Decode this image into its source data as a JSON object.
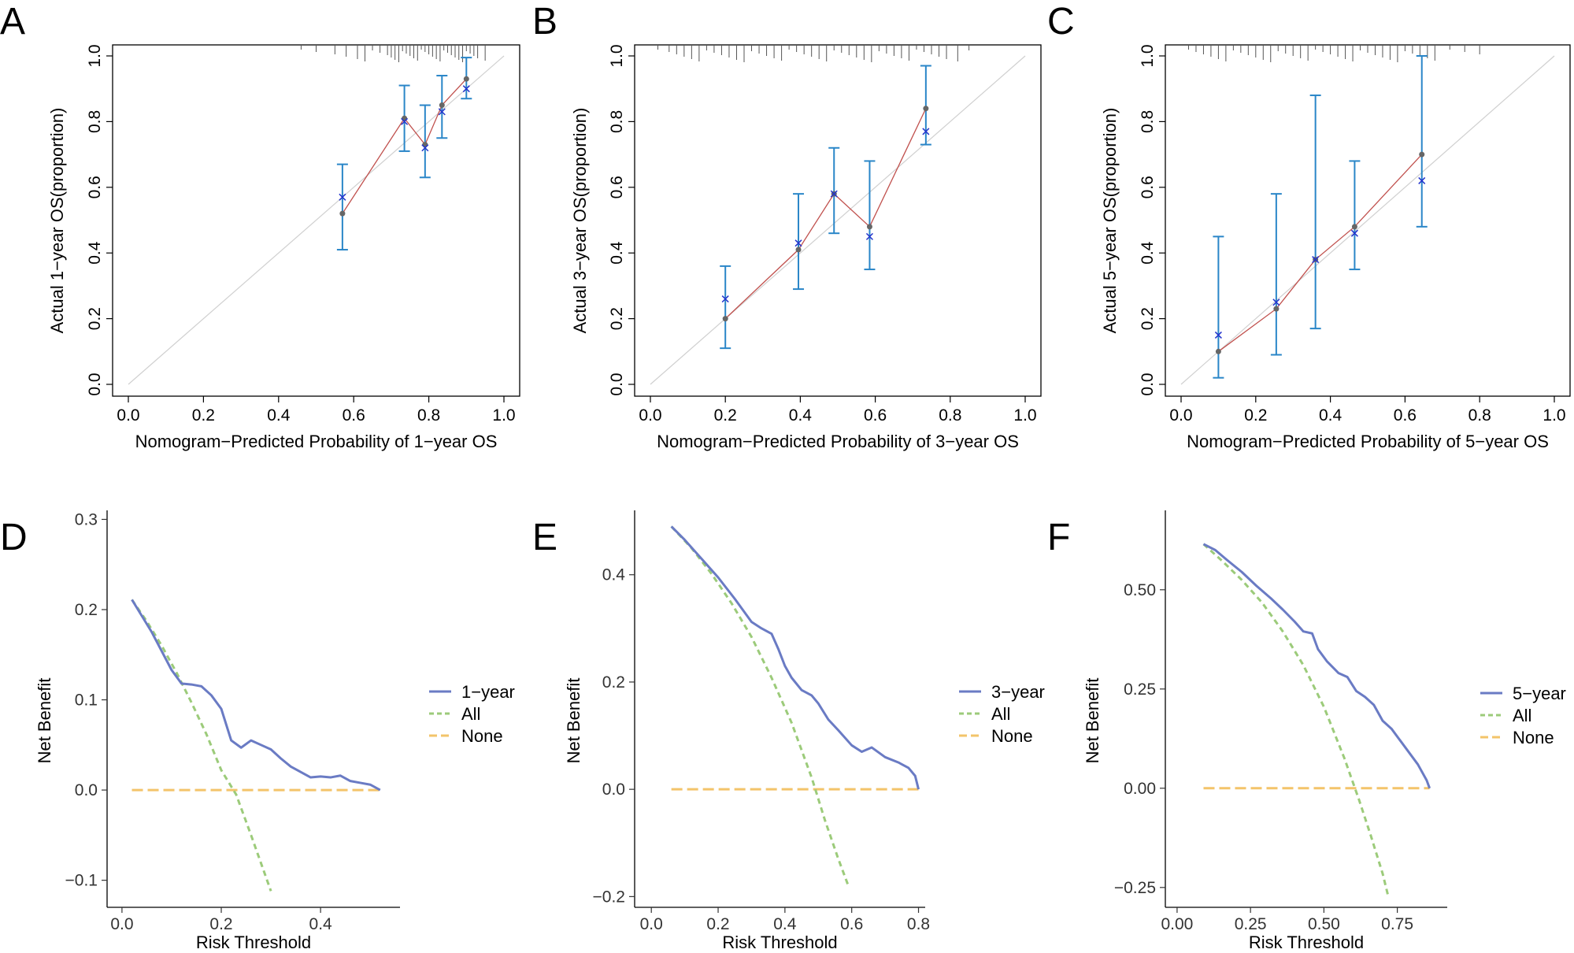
{
  "panels": {
    "A": "A",
    "B": "B",
    "C": "C",
    "D": "D",
    "E": "E",
    "F": "F"
  },
  "colors": {
    "errorbar": "#2a86c8",
    "observed_line": "#c0504d",
    "observed_point": "#666666",
    "corrected_x": "#2233cc",
    "ideal_line": "#d0d0d0",
    "rug": "#555555",
    "model_curve": "#6a7bc4",
    "all_curve": "#9ccb7a",
    "none_curve": "#f3c46a"
  },
  "chart_data": [
    {
      "id": "A",
      "type": "calibration",
      "xlabel": "Nomogram−Predicted Probability of 1−year OS",
      "ylabel": "Actual 1−year OS(proportion)",
      "xlim": [
        0,
        1
      ],
      "ylim": [
        0,
        1
      ],
      "xticks": [
        "0.0",
        "0.2",
        "0.4",
        "0.6",
        "0.8",
        "1.0"
      ],
      "yticks": [
        "0.0",
        "0.2",
        "0.4",
        "0.6",
        "0.8",
        "1.0"
      ],
      "points": [
        {
          "x": 0.57,
          "observed": 0.52,
          "corrected": 0.57,
          "lo": 0.41,
          "hi": 0.67
        },
        {
          "x": 0.735,
          "observed": 0.81,
          "corrected": 0.8,
          "lo": 0.71,
          "hi": 0.91
        },
        {
          "x": 0.79,
          "observed": 0.73,
          "corrected": 0.72,
          "lo": 0.63,
          "hi": 0.85
        },
        {
          "x": 0.835,
          "observed": 0.85,
          "corrected": 0.83,
          "lo": 0.75,
          "hi": 0.94
        },
        {
          "x": 0.9,
          "observed": 0.93,
          "corrected": 0.9,
          "lo": 0.87,
          "hi": 0.995
        }
      ],
      "rug": [
        0.46,
        0.5,
        0.55,
        0.58,
        0.61,
        0.63,
        0.65,
        0.67,
        0.69,
        0.7,
        0.71,
        0.72,
        0.73,
        0.74,
        0.75,
        0.76,
        0.77,
        0.78,
        0.79,
        0.8,
        0.81,
        0.82,
        0.83,
        0.84,
        0.85,
        0.86,
        0.87,
        0.88,
        0.89,
        0.9,
        0.91,
        0.92,
        0.93,
        0.95
      ]
    },
    {
      "id": "B",
      "type": "calibration",
      "xlabel": "Nomogram−Predicted Probability of 3−year OS",
      "ylabel": "Actual 3−year OS(proportion)",
      "xlim": [
        0,
        1
      ],
      "ylim": [
        0,
        1
      ],
      "xticks": [
        "0.0",
        "0.2",
        "0.4",
        "0.6",
        "0.8",
        "1.0"
      ],
      "yticks": [
        "0.0",
        "0.2",
        "0.4",
        "0.6",
        "0.8",
        "1.0"
      ],
      "points": [
        {
          "x": 0.2,
          "observed": 0.2,
          "corrected": 0.26,
          "lo": 0.11,
          "hi": 0.36
        },
        {
          "x": 0.395,
          "observed": 0.41,
          "corrected": 0.43,
          "lo": 0.29,
          "hi": 0.58
        },
        {
          "x": 0.49,
          "observed": 0.58,
          "corrected": 0.58,
          "lo": 0.46,
          "hi": 0.72
        },
        {
          "x": 0.585,
          "observed": 0.48,
          "corrected": 0.45,
          "lo": 0.35,
          "hi": 0.68
        },
        {
          "x": 0.735,
          "observed": 0.84,
          "corrected": 0.77,
          "lo": 0.73,
          "hi": 0.97
        }
      ],
      "rug": [
        0.02,
        0.05,
        0.07,
        0.09,
        0.11,
        0.13,
        0.15,
        0.17,
        0.19,
        0.21,
        0.23,
        0.25,
        0.27,
        0.29,
        0.31,
        0.33,
        0.35,
        0.37,
        0.39,
        0.41,
        0.43,
        0.45,
        0.47,
        0.49,
        0.51,
        0.53,
        0.55,
        0.57,
        0.59,
        0.61,
        0.63,
        0.65,
        0.67,
        0.69,
        0.71,
        0.73,
        0.75,
        0.77,
        0.79,
        0.82,
        0.85
      ]
    },
    {
      "id": "C",
      "type": "calibration",
      "xlabel": "Nomogram−Predicted Probability of 5−year OS",
      "ylabel": "Actual 5−year OS(proportion)",
      "xlim": [
        0,
        1
      ],
      "ylim": [
        0,
        1
      ],
      "xticks": [
        "0.0",
        "0.2",
        "0.4",
        "0.6",
        "0.8",
        "1.0"
      ],
      "yticks": [
        "0.0",
        "0.2",
        "0.4",
        "0.6",
        "0.8",
        "1.0"
      ],
      "points": [
        {
          "x": 0.1,
          "observed": 0.1,
          "corrected": 0.15,
          "lo": 0.02,
          "hi": 0.45
        },
        {
          "x": 0.255,
          "observed": 0.23,
          "corrected": 0.25,
          "lo": 0.09,
          "hi": 0.58
        },
        {
          "x": 0.36,
          "observed": 0.38,
          "corrected": 0.38,
          "lo": 0.17,
          "hi": 0.88
        },
        {
          "x": 0.465,
          "observed": 0.48,
          "corrected": 0.46,
          "lo": 0.35,
          "hi": 0.68
        },
        {
          "x": 0.645,
          "observed": 0.7,
          "corrected": 0.62,
          "lo": 0.48,
          "hi": 1.0
        }
      ],
      "rug": [
        0.02,
        0.04,
        0.06,
        0.08,
        0.1,
        0.12,
        0.14,
        0.16,
        0.18,
        0.2,
        0.22,
        0.24,
        0.26,
        0.28,
        0.3,
        0.32,
        0.34,
        0.36,
        0.38,
        0.4,
        0.42,
        0.44,
        0.46,
        0.48,
        0.5,
        0.52,
        0.54,
        0.56,
        0.58,
        0.6,
        0.62,
        0.64,
        0.66,
        0.68,
        0.72,
        0.76,
        0.8
      ]
    },
    {
      "id": "D",
      "type": "line",
      "xlabel": "Risk Threshold",
      "ylabel": "Net Benefit",
      "xlim": [
        -0.03,
        0.56
      ],
      "ylim": [
        -0.13,
        0.31
      ],
      "xticks": [
        {
          "v": 0.0,
          "label": "0.0"
        },
        {
          "v": 0.2,
          "label": "0.2"
        },
        {
          "v": 0.4,
          "label": "0.4"
        }
      ],
      "yticks": [
        {
          "v": -0.1,
          "label": "−0.1"
        },
        {
          "v": 0.0,
          "label": "0.0"
        },
        {
          "v": 0.1,
          "label": "0.1"
        },
        {
          "v": 0.2,
          "label": "0.2"
        },
        {
          "v": 0.3,
          "label": "0.3"
        }
      ],
      "legend": [
        "1−year",
        "All",
        "None"
      ],
      "series": [
        {
          "name": "1−year",
          "x": [
            0.02,
            0.06,
            0.1,
            0.12,
            0.14,
            0.16,
            0.18,
            0.2,
            0.22,
            0.24,
            0.26,
            0.28,
            0.3,
            0.32,
            0.34,
            0.36,
            0.38,
            0.4,
            0.42,
            0.44,
            0.46,
            0.48,
            0.5,
            0.52
          ],
          "y": [
            0.211,
            0.175,
            0.133,
            0.118,
            0.117,
            0.115,
            0.105,
            0.09,
            0.055,
            0.047,
            0.055,
            0.05,
            0.045,
            0.035,
            0.026,
            0.02,
            0.014,
            0.015,
            0.014,
            0.016,
            0.01,
            0.008,
            0.006,
            0.0
          ]
        },
        {
          "name": "All",
          "x": [
            0.02,
            0.05,
            0.08,
            0.11,
            0.14,
            0.17,
            0.2,
            0.23,
            0.26,
            0.3
          ],
          "y": [
            0.211,
            0.187,
            0.16,
            0.13,
            0.097,
            0.062,
            0.022,
            -0.005,
            -0.05,
            -0.112
          ]
        },
        {
          "name": "None",
          "x": [
            0.02,
            0.52
          ],
          "y": [
            0.0,
            0.0
          ]
        }
      ]
    },
    {
      "id": "E",
      "type": "line",
      "xlabel": "Risk Threshold",
      "ylabel": "Net Benefit",
      "xlim": [
        -0.05,
        0.82
      ],
      "ylim": [
        -0.22,
        0.52
      ],
      "xticks": [
        {
          "v": 0.0,
          "label": "0.0"
        },
        {
          "v": 0.2,
          "label": "0.2"
        },
        {
          "v": 0.4,
          "label": "0.4"
        },
        {
          "v": 0.6,
          "label": "0.6"
        },
        {
          "v": 0.8,
          "label": "0.8"
        }
      ],
      "yticks": [
        {
          "v": -0.2,
          "label": "−0.2"
        },
        {
          "v": 0.0,
          "label": "0.0"
        },
        {
          "v": 0.2,
          "label": "0.2"
        },
        {
          "v": 0.4,
          "label": "0.4"
        }
      ],
      "legend": [
        "3−year",
        "All",
        "None"
      ],
      "series": [
        {
          "name": "3−year",
          "x": [
            0.06,
            0.1,
            0.15,
            0.2,
            0.25,
            0.3,
            0.33,
            0.36,
            0.38,
            0.4,
            0.42,
            0.45,
            0.48,
            0.5,
            0.53,
            0.56,
            0.6,
            0.63,
            0.66,
            0.7,
            0.74,
            0.77,
            0.79,
            0.8
          ],
          "y": [
            0.49,
            0.465,
            0.43,
            0.395,
            0.355,
            0.312,
            0.3,
            0.29,
            0.262,
            0.23,
            0.208,
            0.185,
            0.175,
            0.16,
            0.13,
            0.11,
            0.082,
            0.07,
            0.078,
            0.06,
            0.05,
            0.04,
            0.025,
            0.0
          ]
        },
        {
          "name": "All",
          "x": [
            0.06,
            0.12,
            0.18,
            0.24,
            0.3,
            0.36,
            0.42,
            0.48,
            0.52,
            0.56,
            0.59
          ],
          "y": [
            0.49,
            0.45,
            0.402,
            0.347,
            0.284,
            0.208,
            0.124,
            0.022,
            -0.058,
            -0.13,
            -0.18
          ]
        },
        {
          "name": "None",
          "x": [
            0.06,
            0.8
          ],
          "y": [
            0.0,
            0.0
          ]
        }
      ]
    },
    {
      "id": "F",
      "type": "line",
      "xlabel": "Risk Threshold",
      "ylabel": "Net Benefit",
      "xlim": [
        -0.04,
        0.92
      ],
      "ylim": [
        -0.3,
        0.7
      ],
      "xticks": [
        {
          "v": 0.0,
          "label": "0.00"
        },
        {
          "v": 0.25,
          "label": "0.25"
        },
        {
          "v": 0.5,
          "label": "0.50"
        },
        {
          "v": 0.75,
          "label": "0.75"
        }
      ],
      "yticks": [
        {
          "v": -0.25,
          "label": "−0.25"
        },
        {
          "v": 0.0,
          "label": "0.00"
        },
        {
          "v": 0.25,
          "label": "0.25"
        },
        {
          "v": 0.5,
          "label": "0.50"
        }
      ],
      "legend": [
        "5−year",
        "All",
        "None"
      ],
      "series": [
        {
          "name": "5−year",
          "x": [
            0.09,
            0.13,
            0.17,
            0.22,
            0.27,
            0.32,
            0.36,
            0.4,
            0.43,
            0.46,
            0.48,
            0.51,
            0.55,
            0.58,
            0.61,
            0.64,
            0.67,
            0.7,
            0.73,
            0.76,
            0.79,
            0.82,
            0.85,
            0.86
          ],
          "y": [
            0.615,
            0.6,
            0.575,
            0.545,
            0.51,
            0.478,
            0.45,
            0.42,
            0.395,
            0.39,
            0.35,
            0.32,
            0.29,
            0.28,
            0.245,
            0.23,
            0.21,
            0.17,
            0.15,
            0.12,
            0.09,
            0.06,
            0.02,
            0.0
          ]
        },
        {
          "name": "All",
          "x": [
            0.09,
            0.15,
            0.22,
            0.29,
            0.36,
            0.43,
            0.5,
            0.57,
            0.62,
            0.66,
            0.7,
            0.72
          ],
          "y": [
            0.615,
            0.575,
            0.525,
            0.467,
            0.395,
            0.31,
            0.205,
            0.075,
            -0.03,
            -0.12,
            -0.215,
            -0.275
          ]
        },
        {
          "name": "None",
          "x": [
            0.09,
            0.86
          ],
          "y": [
            0.0,
            0.0
          ]
        }
      ]
    }
  ]
}
